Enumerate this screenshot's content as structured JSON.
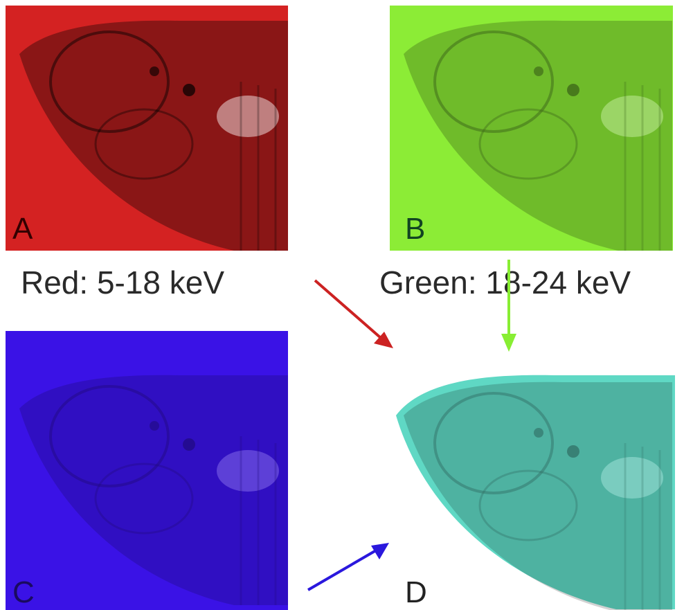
{
  "panels": {
    "a": {
      "label": "A"
    },
    "b": {
      "label": "B"
    },
    "c": {
      "label": "C"
    },
    "d": {
      "label": "D"
    }
  },
  "captions": {
    "red": "Red: 5-18 keV",
    "green": "Green: 18-24 keV"
  }
}
